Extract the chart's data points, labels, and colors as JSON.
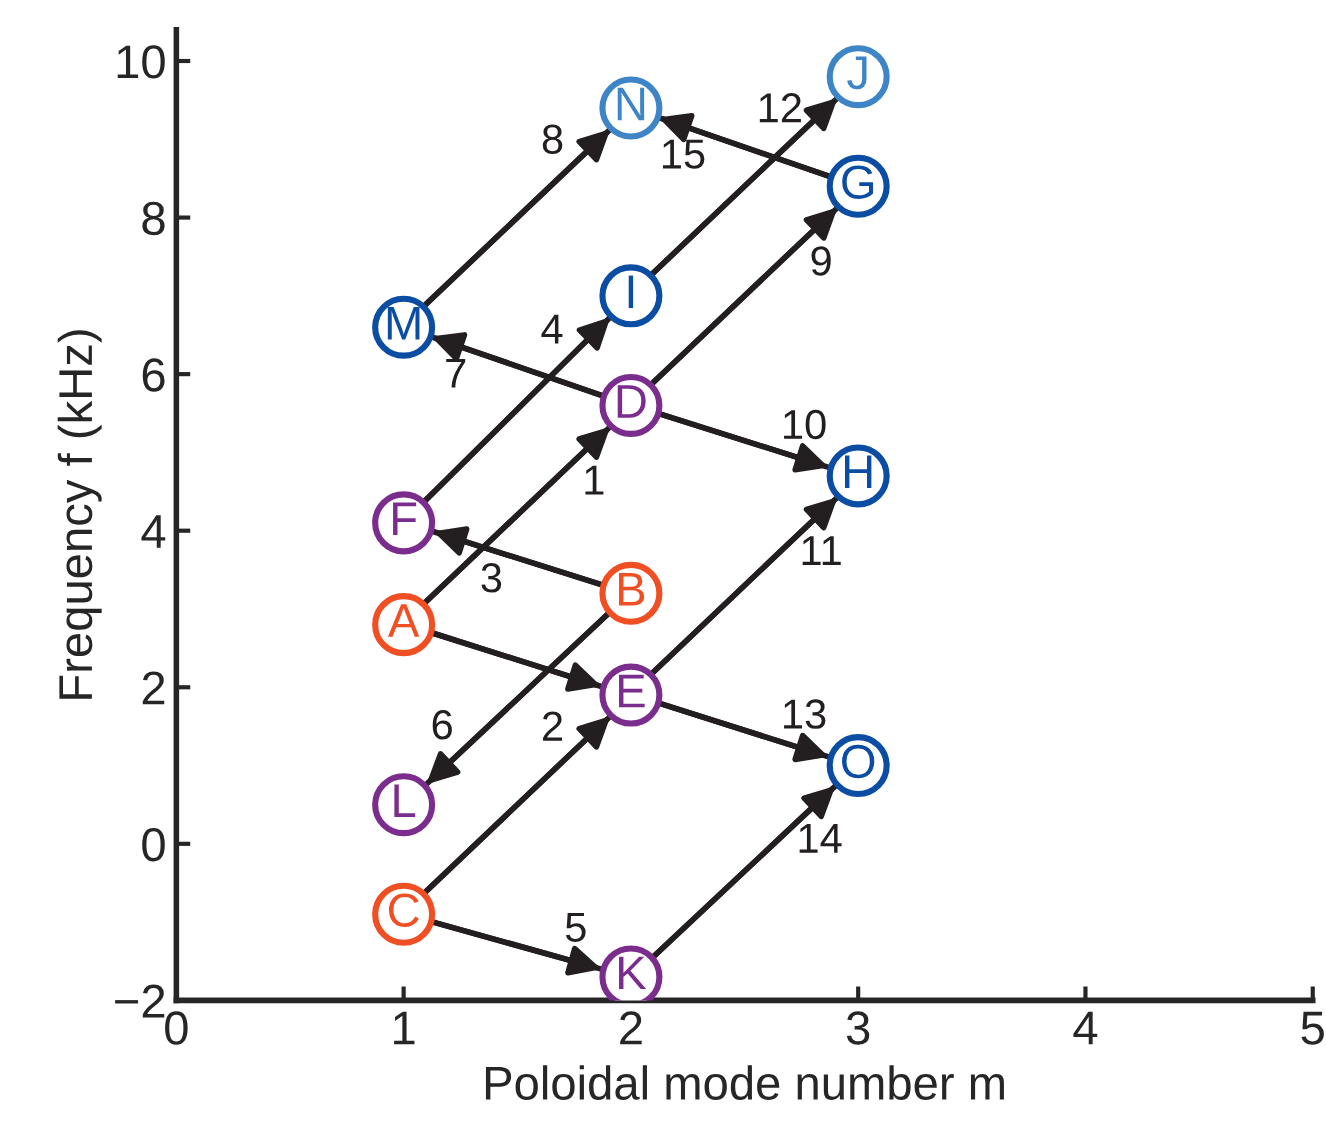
{
  "chart_data": {
    "type": "scatter",
    "xlabel": "Poloidal mode number m",
    "ylabel": "Frequency f (kHz)",
    "xlim": [
      0,
      5
    ],
    "xticks": [
      0,
      1,
      2,
      3,
      4,
      5
    ],
    "ylim": [
      -2,
      10.4
    ],
    "yticks": [
      -2,
      0,
      2,
      4,
      6,
      8,
      10
    ],
    "grid": false,
    "legend": false,
    "series": [
      {
        "type": "line",
        "x": [
          1.09,
          1.91
        ],
        "values": [
          3.07,
          5.33
        ],
        "color": "#231f20"
      },
      {
        "type": "line",
        "x": [
          1.09,
          1.91
        ],
        "values": [
          -0.63,
          1.63
        ],
        "color": "#231f20"
      },
      {
        "type": "line",
        "x": [
          1.87,
          1.13
        ],
        "values": [
          3.31,
          3.99
        ],
        "color": "#231f20"
      },
      {
        "type": "line",
        "x": [
          1.09,
          1.91
        ],
        "values": [
          4.37,
          6.73
        ],
        "color": "#231f20"
      },
      {
        "type": "line",
        "x": [
          1.13,
          1.87
        ],
        "values": [
          -1.0,
          -1.6
        ],
        "color": "#231f20"
      },
      {
        "type": "line",
        "x": [
          1.9,
          1.1
        ],
        "values": [
          2.94,
          0.76
        ],
        "color": "#231f20"
      },
      {
        "type": "line",
        "x": [
          1.88,
          1.12
        ],
        "values": [
          5.72,
          6.48
        ],
        "color": "#231f20"
      },
      {
        "type": "line",
        "x": [
          1.09,
          1.91
        ],
        "values": [
          6.87,
          9.13
        ],
        "color": "#231f20"
      },
      {
        "type": "line",
        "x": [
          2.09,
          2.91
        ],
        "values": [
          5.87,
          8.13
        ],
        "color": "#231f20"
      },
      {
        "type": "line",
        "x": [
          2.13,
          2.87
        ],
        "values": [
          5.49,
          4.81
        ],
        "color": "#231f20"
      },
      {
        "type": "line",
        "x": [
          2.09,
          2.91
        ],
        "values": [
          2.17,
          4.43
        ],
        "color": "#231f20"
      },
      {
        "type": "line",
        "x": [
          2.09,
          2.91
        ],
        "values": [
          7.27,
          9.53
        ],
        "color": "#231f20"
      },
      {
        "type": "line",
        "x": [
          2.13,
          2.87
        ],
        "values": [
          1.79,
          1.11
        ],
        "color": "#231f20"
      },
      {
        "type": "line",
        "x": [
          2.1,
          2.9
        ],
        "values": [
          -1.44,
          0.74
        ],
        "color": "#231f20"
      },
      {
        "type": "line",
        "x": [
          2.88,
          2.12
        ],
        "values": [
          8.52,
          9.28
        ],
        "color": "#231f20"
      },
      {
        "type": "line",
        "x": [
          1.13,
          1.87
        ],
        "values": [
          2.69,
          2.01
        ],
        "color": "#231f20"
      },
      {
        "marker": "circle",
        "x": [
          1,
          2,
          1,
          2,
          2,
          1,
          3,
          3,
          2,
          3,
          2,
          1,
          1,
          2,
          3
        ],
        "values": [
          2.8,
          3.2,
          -0.9,
          5.6,
          1.9,
          4.1,
          8.4,
          4.7,
          7.0,
          9.8,
          -1.7,
          0.5,
          6.6,
          9.4,
          1.0
        ],
        "colors": [
          "#f04e23",
          "#f04e23",
          "#f04e23",
          "#7b2d8e",
          "#7b2d8e",
          "#7b2d8e",
          "#0a4da2",
          "#0a4da2",
          "#0a4da2",
          "#3d85c6",
          "#7b2d8e",
          "#7b2d8e",
          "#0a4da2",
          "#3d85c6",
          "#0a4da2"
        ]
      }
    ],
    "annotations": [
      {
        "text": "A",
        "x": 1,
        "y": 2.8
      },
      {
        "text": "B",
        "x": 2,
        "y": 3.2
      },
      {
        "text": "C",
        "x": 1,
        "y": -0.9
      },
      {
        "text": "D",
        "x": 2,
        "y": 5.6
      },
      {
        "text": "E",
        "x": 2,
        "y": 1.9
      },
      {
        "text": "F",
        "x": 1,
        "y": 4.1
      },
      {
        "text": "G",
        "x": 3,
        "y": 8.4
      },
      {
        "text": "H",
        "x": 3,
        "y": 4.7
      },
      {
        "text": "I",
        "x": 2,
        "y": 7.0
      },
      {
        "text": "J",
        "x": 3,
        "y": 9.8
      },
      {
        "text": "K",
        "x": 2,
        "y": -1.7
      },
      {
        "text": "L",
        "x": 1,
        "y": 0.5
      },
      {
        "text": "M",
        "x": 1,
        "y": 6.6
      },
      {
        "text": "N",
        "x": 2,
        "y": 9.4
      },
      {
        "text": "O",
        "x": 3,
        "y": 1.0
      },
      "1",
      "2",
      "3",
      "4",
      "5",
      "6",
      "7",
      "8",
      "9",
      "10",
      "11",
      "12",
      "13",
      "14",
      "15"
    ]
  }
}
